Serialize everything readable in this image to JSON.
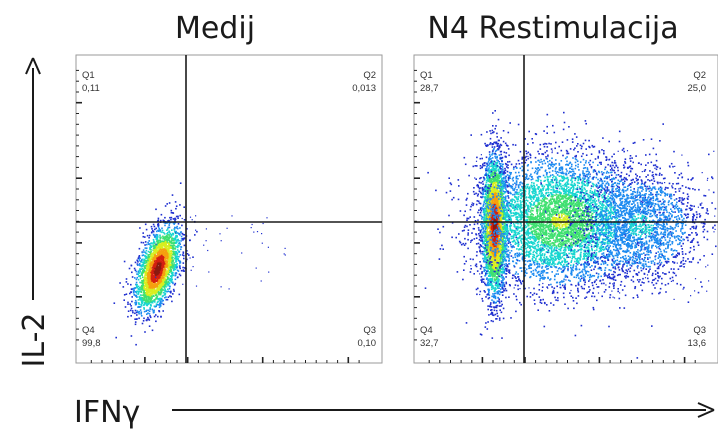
{
  "colors": {
    "density_ramp": [
      "#1f2fd0",
      "#1d8bf0",
      "#18d6d0",
      "#3fe070",
      "#d8ee20",
      "#f6a010",
      "#d42010",
      "#8a1a10"
    ],
    "frame": "#9a9a9a",
    "gate": "#1a1a1a",
    "text": "#1a1a1a"
  },
  "axes": {
    "x_label": "IFNγ",
    "y_label": "IL-2"
  },
  "chart_data": [
    {
      "type": "scatter",
      "title": "Medij",
      "xlabel": "IFNγ",
      "ylabel": "IL-2",
      "x_scale": "log",
      "y_scale": "log",
      "grid": false,
      "quadrants": [
        {
          "name": "Q1",
          "value": "0,11"
        },
        {
          "name": "Q2",
          "value": "0,013"
        },
        {
          "name": "Q3",
          "value": "0,10"
        },
        {
          "name": "Q4",
          "value": "99,8"
        }
      ]
    },
    {
      "type": "scatter",
      "title": "N4 Restimulacija",
      "xlabel": "IFNγ",
      "ylabel": "IL-2",
      "x_scale": "log",
      "y_scale": "log",
      "grid": false,
      "quadrants": [
        {
          "name": "Q1",
          "value": "28,7"
        },
        {
          "name": "Q2",
          "value": "25,0"
        },
        {
          "name": "Q3",
          "value": "13,6"
        },
        {
          "name": "Q4",
          "value": "32,7"
        }
      ]
    }
  ]
}
